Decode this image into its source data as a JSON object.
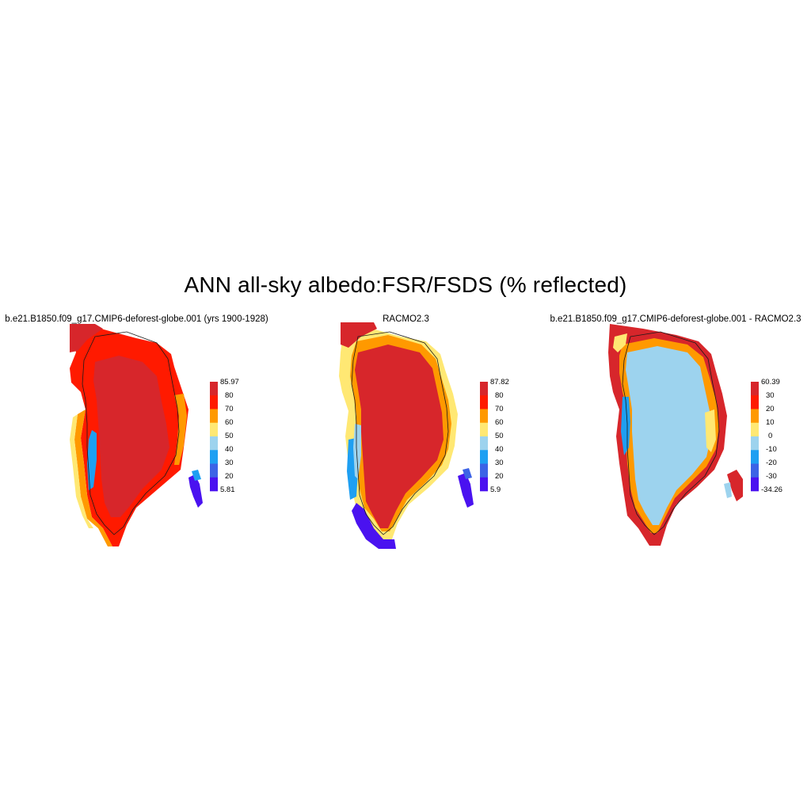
{
  "title": "ANN all-sky albedo:FSR/FSDS (% reflected)",
  "panels": [
    {
      "title": "b.e21.B1850.f09_g17.CMIP6-deforest-globe.001 (yrs 1900-1928)",
      "colorbar": {
        "max_label": "85.97",
        "ticks": [
          "80",
          "70",
          "60",
          "50",
          "40",
          "30",
          "20"
        ],
        "min_label": "5.81",
        "colors": [
          "#d7262b",
          "#ff1a00",
          "#ff9900",
          "#ffe873",
          "#9dd3ee",
          "#1e9ff2",
          "#3c63e6",
          "#4a12f0"
        ]
      }
    },
    {
      "title": "RACMO2.3",
      "colorbar": {
        "max_label": "87.82",
        "ticks": [
          "80",
          "70",
          "60",
          "50",
          "40",
          "30",
          "20"
        ],
        "min_label": "5.9",
        "colors": [
          "#d7262b",
          "#ff1a00",
          "#ff9900",
          "#ffe873",
          "#9dd3ee",
          "#1e9ff2",
          "#3c63e6",
          "#4a12f0"
        ]
      }
    },
    {
      "title": "b.e21.B1850.f09_g17.CMIP6-deforest-globe.001 - RACMO2.3",
      "colorbar": {
        "max_label": "60.39",
        "ticks": [
          "30",
          "20",
          "10",
          "0",
          "-10",
          "-20",
          "-30"
        ],
        "min_label": "-34.26",
        "colors": [
          "#d7262b",
          "#ff1a00",
          "#ff9900",
          "#ffe873",
          "#9dd3ee",
          "#1e9ff2",
          "#3c63e6",
          "#4a12f0"
        ]
      }
    }
  ]
}
